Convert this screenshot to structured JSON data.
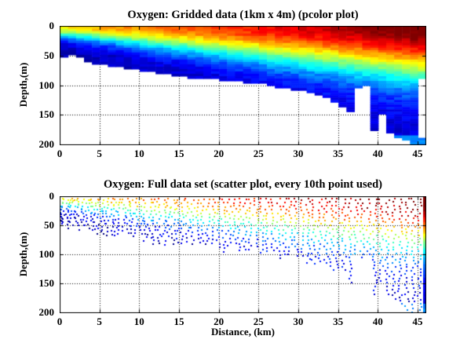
{
  "figure": {
    "background": "#ffffff",
    "axis_color": "#000000",
    "grid_style": "dotted",
    "colormap": "jet",
    "colormap_dark_red": "#800000",
    "colormap_dark_blue": "#000080"
  },
  "chart_data": [
    {
      "type": "heatmap",
      "title": "Oxygen: Gridded data (1km x 4m) (pcolor plot)",
      "xlabel": "",
      "ylabel": "Depth,(m)",
      "x_range": [
        0,
        46
      ],
      "y_range": [
        0,
        200
      ],
      "y_reversed": true,
      "xticks": [
        0,
        5,
        10,
        15,
        20,
        25,
        30,
        35,
        40,
        45
      ],
      "yticks": [
        0,
        50,
        100,
        150,
        200
      ],
      "grid": "on",
      "cell_km": 1,
      "cell_m": 4,
      "bottom_depth_by_km": [
        50,
        46,
        52,
        58,
        62,
        64,
        66,
        68,
        70,
        72,
        74,
        76,
        78,
        80,
        82,
        84,
        85,
        86,
        88,
        88,
        90,
        90,
        92,
        94,
        94,
        96,
        98,
        102,
        104,
        106,
        108,
        112,
        116,
        120,
        128,
        136,
        144,
        102,
        100,
        176,
        148,
        178,
        186,
        192,
        198,
        86
      ],
      "deep_patch": {
        "km_from": 45,
        "km_to": 46,
        "z_from": 188,
        "z_to": 200
      },
      "field_model": {
        "surface_base": 0.66,
        "surface_slope": 0.38,
        "decay_base_m": 18,
        "decay_slope_m_per_km": 1.5,
        "floor": 0.08,
        "deep_boost_depth_m": 183,
        "deep_boost_value": 0.26,
        "cell_noise": 0.07
      }
    },
    {
      "type": "scatter",
      "title": "Oxygen: Full data set (scatter plot, every 10th point used)",
      "xlabel": "Distance, (km)",
      "ylabel": "Depth,(m)",
      "x_range": [
        0,
        46
      ],
      "y_range": [
        0,
        200
      ],
      "y_reversed": true,
      "xticks": [
        0,
        5,
        10,
        15,
        20,
        25,
        30,
        35,
        40,
        45
      ],
      "yticks": [
        0,
        50,
        100,
        150,
        200
      ],
      "grid": "on",
      "marker_px": 2,
      "stations": {
        "count": 75,
        "spacing_power": 1.35,
        "x_max_km": 46,
        "depth_step_m": 4.5,
        "x_jitter_km": 0.55,
        "value_noise": 0.14,
        "edge_profile_km": 45.85,
        "edge_profile_step_m": 2,
        "edge_profile_depth_m": 200
      }
    }
  ]
}
